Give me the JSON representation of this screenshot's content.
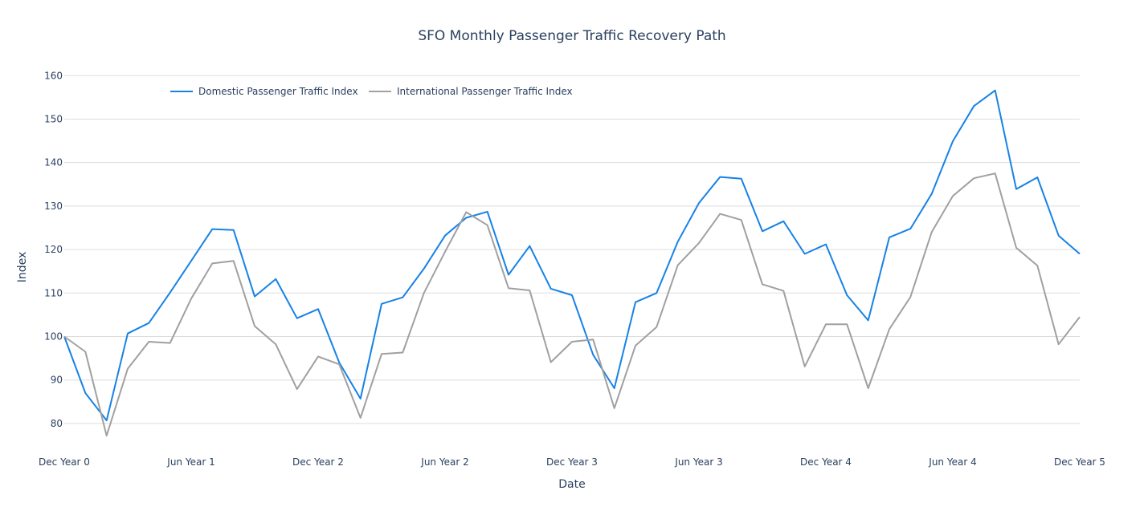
{
  "chart_data": {
    "type": "line",
    "title": "SFO Monthly Passenger Traffic Recovery Path",
    "xlabel": "Date",
    "ylabel": "Index",
    "x_tick_labels": [
      "Dec Year 0",
      "Jun Year 1",
      "Dec Year 2",
      "Jun Year 2",
      "Dec Year 3",
      "Jun Year 3",
      "Dec Year 4",
      "Jun Year 4",
      "Dec Year 5"
    ],
    "x_tick_index": [
      0,
      6,
      12,
      18,
      24,
      30,
      36,
      42,
      48
    ],
    "y_ticks": [
      80,
      90,
      100,
      110,
      120,
      130,
      140,
      150,
      160
    ],
    "ylim": [
      75,
      163
    ],
    "grid": true,
    "legend_position": "top-left",
    "series": [
      {
        "name": "Domestic Passenger Traffic Index",
        "color": "#1782e6",
        "values": [
          100,
          87,
          80.7,
          100.7,
          103.1,
          110.1,
          117.4,
          124.7,
          124.5,
          109.2,
          113.2,
          104.2,
          106.3,
          94,
          85.7,
          107.5,
          109,
          115.6,
          123.2,
          127.3,
          128.7,
          114.2,
          120.8,
          111,
          109.5,
          95.8,
          88.1,
          107.9,
          110,
          121.8,
          130.7,
          136.7,
          136.3,
          124.2,
          126.5,
          119,
          121.2,
          109.5,
          103.7,
          122.8,
          124.8,
          132.8,
          144.9,
          153,
          156.6,
          133.9,
          136.6,
          123.2,
          119
        ]
      },
      {
        "name": "International Passenger Traffic Index",
        "color": "#a0a0a0",
        "values": [
          100,
          96.5,
          77.2,
          92.6,
          98.8,
          98.5,
          108.7,
          116.8,
          117.4,
          102.4,
          98.2,
          87.9,
          95.4,
          93.6,
          81.3,
          96,
          96.3,
          110,
          119.5,
          128.6,
          125.6,
          111.1,
          110.6,
          94.1,
          98.8,
          99.3,
          83.5,
          97.9,
          102.2,
          116.4,
          121.5,
          128.2,
          126.8,
          112,
          110.5,
          93.1,
          102.8,
          102.8,
          88.1,
          101.7,
          109.1,
          124,
          132.3,
          136.4,
          137.5,
          120.4,
          116.3,
          98.2,
          104.5
        ]
      }
    ]
  }
}
